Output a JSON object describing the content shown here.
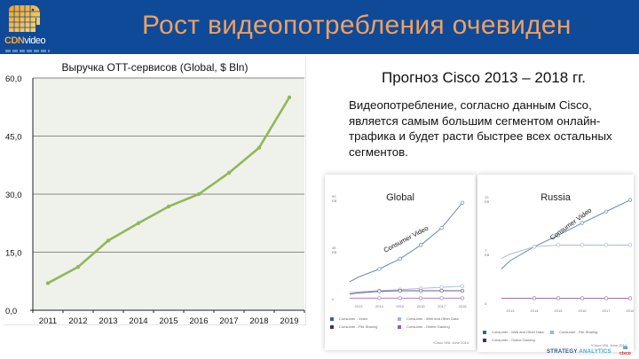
{
  "header": {
    "logo_text_bold": "CDN",
    "logo_text_light": "video",
    "title": "Рост видеопотребления очевиден",
    "background_color": "#0f4a98",
    "title_color": "#f0a060"
  },
  "revenue_chart": {
    "title": "Выручка OTT-сервисов (Global, $ Bln)",
    "y_ticks": [
      "0,0",
      "15,0",
      "30,0",
      "45,0",
      "60,0"
    ],
    "x_ticks": [
      "2011",
      "2012",
      "2013",
      "2014",
      "2015",
      "2016",
      "2017",
      "2018",
      "2019"
    ],
    "line_color": "#93b65a",
    "plot_bg": "#eff2ea"
  },
  "forecast": {
    "title": "Прогноз Cisco 2013 – 2018 гг.",
    "body": "Видеопотребление, согласно данным Cisco, является самым большим сегментом онлайн-трафика и будет расти быстрее всех остальных сегментов."
  },
  "global_thumb": {
    "title": "Global",
    "y_top": "90",
    "y_top_unit": "EB",
    "y_mid": "45",
    "y_mid_unit": "EB",
    "y_zero": "0",
    "curve_label": "Consumer Video",
    "x_ticks": [
      "2013",
      "2014",
      "2015",
      "2016",
      "2017",
      "2018"
    ],
    "legend": [
      {
        "label": "Consumer - Video",
        "color": "#3a5f9e"
      },
      {
        "label": "Consumer - Web and Other Data",
        "color": "#9fb5d8"
      },
      {
        "label": "Consumer - File Sharing",
        "color": "#4a2a6a"
      },
      {
        "label": "Consumer - Online Gaming",
        "color": "#9b59b6"
      }
    ],
    "source": "*Cisco VNI, June 2014"
  },
  "russia_thumb": {
    "title": "Russia",
    "y_top": "13",
    "y_top_unit": "EB",
    "y_mid": "7",
    "y_mid_unit": "EB",
    "y_zero": "0",
    "curve_label": "Consumer Video",
    "x_ticks": [
      "2013",
      "2014",
      "2015",
      "2016",
      "2017",
      "2018"
    ],
    "legend": [
      {
        "label": "Consumer - Web and Other Data",
        "color": "#3a5f9e"
      },
      {
        "label": "Consumer - File Sharing",
        "color": "#9fb5d8"
      },
      {
        "label": "Consumer - Online Gaming",
        "color": "#4a2a6a"
      }
    ],
    "source": "*Cisco VNI, June 2014"
  },
  "footer": {
    "strategy": "STRATEGY",
    "analytics": "ANALYTICS",
    "cisco": "cisco"
  },
  "chart_data": [
    {
      "type": "line",
      "title": "Выручка OTT-сервисов (Global, $ Bln)",
      "xlabel": "",
      "ylabel": "",
      "categories": [
        "2011",
        "2012",
        "2013",
        "2014",
        "2015",
        "2016",
        "2017",
        "2018",
        "2019"
      ],
      "values": [
        7.0,
        11.2,
        18.0,
        22.5,
        26.8,
        30.0,
        35.5,
        42.0,
        55.0
      ],
      "ylim": [
        0,
        60
      ],
      "y_ticks": [
        0,
        15,
        30,
        45,
        60
      ],
      "grid": true,
      "legend": "none"
    },
    {
      "type": "line",
      "title": "Global",
      "ylabel": "EB",
      "categories": [
        "2013",
        "2014",
        "2015",
        "2016",
        "2017",
        "2018"
      ],
      "ylim": [
        0,
        90
      ],
      "series": [
        {
          "name": "Consumer - Video",
          "values": [
            19,
            26,
            35,
            47,
            62,
            84
          ]
        },
        {
          "name": "Consumer - Web and Other Data",
          "values": [
            6,
            7,
            8,
            9,
            10,
            11
          ]
        },
        {
          "name": "Consumer - File Sharing",
          "values": [
            5,
            6.5,
            7,
            7,
            7,
            7
          ]
        },
        {
          "name": "Consumer - Online Gaming",
          "values": [
            0.5,
            0.5,
            0.5,
            0.5,
            0.5,
            0.5
          ]
        }
      ],
      "annotations": [
        "Consumer Video"
      ]
    },
    {
      "type": "line",
      "title": "Russia",
      "ylabel": "EB",
      "categories": [
        "2013",
        "2014",
        "2015",
        "2016",
        "2017",
        "2018"
      ],
      "ylim": [
        0,
        13
      ],
      "series": [
        {
          "name": "Consumer Video",
          "values": [
            5.2,
            6.9,
            8.3,
            9.8,
            11.2,
            12.6
          ]
        },
        {
          "name": "Consumer - Web and Other Data",
          "values": [
            6.0,
            6.9,
            7.1,
            7.1,
            7.1,
            7.1
          ]
        },
        {
          "name": "Consumer - Online Gaming",
          "values": [
            0.6,
            0.6,
            0.6,
            0.6,
            0.6,
            0.6
          ]
        }
      ],
      "annotations": [
        "Consumer Video"
      ]
    }
  ]
}
